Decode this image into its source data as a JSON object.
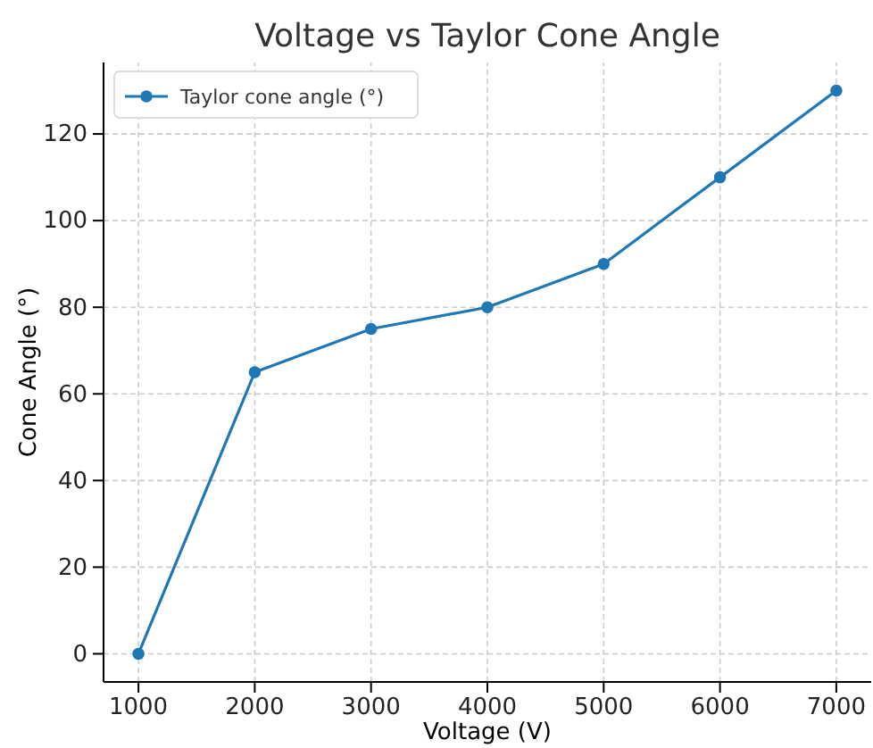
{
  "chart_data": {
    "type": "line",
    "title": "Voltage vs Taylor Cone Angle",
    "xlabel": "Voltage (V)",
    "ylabel": "Cone Angle (°)",
    "x": [
      1000,
      2000,
      3000,
      4000,
      5000,
      6000,
      7000
    ],
    "series": [
      {
        "name": "Taylor cone angle (°)",
        "color": "#1f77b4",
        "values": [
          0,
          65,
          75,
          80,
          90,
          110,
          130
        ]
      }
    ],
    "xlim": [
      700,
      7300
    ],
    "xticks": [
      1000,
      2000,
      3000,
      4000,
      5000,
      6000,
      7000
    ],
    "ylim": [
      -6.5,
      136.5
    ],
    "yticks": [
      0,
      20,
      40,
      60,
      80,
      100,
      120
    ],
    "grid": true,
    "legend": "top left",
    "marker": "circle",
    "line_style": "solid"
  }
}
